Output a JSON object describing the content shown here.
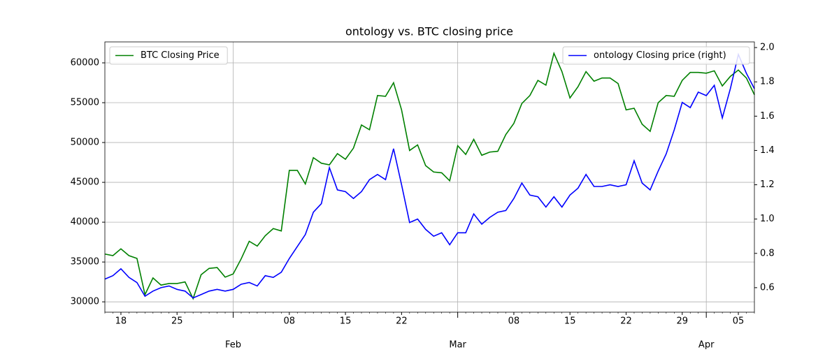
{
  "chart_data": {
    "type": "line",
    "title": "ontology vs. BTC closing price",
    "x": [
      "01-16",
      "01-17",
      "01-18",
      "01-19",
      "01-20",
      "01-21",
      "01-22",
      "01-23",
      "01-24",
      "01-25",
      "01-26",
      "01-27",
      "01-28",
      "01-29",
      "01-30",
      "01-31",
      "02-01",
      "02-02",
      "02-03",
      "02-04",
      "02-05",
      "02-06",
      "02-07",
      "02-08",
      "02-09",
      "02-10",
      "02-11",
      "02-12",
      "02-13",
      "02-14",
      "02-15",
      "02-16",
      "02-17",
      "02-18",
      "02-19",
      "02-20",
      "02-21",
      "02-22",
      "02-23",
      "02-24",
      "02-25",
      "02-26",
      "02-27",
      "02-28",
      "03-01",
      "03-02",
      "03-03",
      "03-04",
      "03-05",
      "03-06",
      "03-07",
      "03-08",
      "03-09",
      "03-10",
      "03-11",
      "03-12",
      "03-13",
      "03-14",
      "03-15",
      "03-16",
      "03-17",
      "03-18",
      "03-19",
      "03-20",
      "03-21",
      "03-22",
      "03-23",
      "03-24",
      "03-25",
      "03-26",
      "03-27",
      "03-28",
      "03-29",
      "03-30",
      "03-31",
      "04-01",
      "04-02",
      "04-03",
      "04-04",
      "04-05",
      "04-06",
      "04-07"
    ],
    "series": [
      {
        "name": "BTC Closing Price",
        "color": "green",
        "axis": "y",
        "values": [
          36000,
          35800,
          36650,
          35800,
          35450,
          30900,
          33000,
          32100,
          32300,
          32300,
          32500,
          30400,
          33400,
          34200,
          34300,
          33100,
          33500,
          35400,
          37600,
          37000,
          38300,
          39200,
          38900,
          46500,
          46500,
          44800,
          48100,
          47400,
          47200,
          48600,
          47900,
          49300,
          52200,
          51600,
          55900,
          55800,
          57500,
          54100,
          49000,
          49700,
          47100,
          46300,
          46200,
          45200,
          49600,
          48500,
          50400,
          48400,
          48800,
          48900,
          51000,
          52400,
          54900,
          55900,
          57800,
          57200,
          61200,
          58900,
          55600,
          57000,
          58900,
          57700,
          58100,
          58100,
          57400,
          54100,
          54300,
          52300,
          51400,
          55000,
          55900,
          55800,
          57800,
          58800,
          58800,
          58700,
          59000,
          57100,
          58300,
          59100,
          58100,
          56000
        ]
      },
      {
        "name": "ontology Closing price (right)",
        "color": "blue",
        "axis": "y2",
        "values": [
          0.65,
          0.67,
          0.71,
          0.66,
          0.63,
          0.55,
          0.58,
          0.6,
          0.61,
          0.59,
          0.58,
          0.54,
          0.56,
          0.58,
          0.59,
          0.58,
          0.59,
          0.62,
          0.63,
          0.61,
          0.67,
          0.66,
          0.69,
          0.77,
          0.84,
          0.91,
          1.04,
          1.09,
          1.3,
          1.17,
          1.16,
          1.12,
          1.16,
          1.23,
          1.26,
          1.23,
          1.41,
          1.2,
          0.98,
          1.0,
          0.94,
          0.9,
          0.92,
          0.85,
          0.92,
          0.92,
          1.03,
          0.97,
          1.01,
          1.04,
          1.05,
          1.12,
          1.21,
          1.14,
          1.13,
          1.07,
          1.13,
          1.07,
          1.14,
          1.18,
          1.26,
          1.19,
          1.19,
          1.2,
          1.19,
          1.2,
          1.34,
          1.21,
          1.17,
          1.28,
          1.38,
          1.52,
          1.68,
          1.65,
          1.74,
          1.72,
          1.78,
          1.59,
          1.76,
          1.96,
          1.85,
          1.76
        ]
      }
    ],
    "ylim": [
      28700,
      62630
    ],
    "yticks": [
      30000,
      35000,
      40000,
      45000,
      50000,
      55000,
      60000
    ],
    "y2lim": [
      0.457,
      2.033
    ],
    "y2ticks": [
      0.6,
      0.8,
      {
        "value": 1.0,
        "label": "1.0"
      },
      1.2,
      1.4,
      1.6,
      1.8,
      {
        "value": 2.0,
        "label": "2.0"
      }
    ],
    "xticks": [
      {
        "value": "01-18",
        "label": "18"
      },
      {
        "value": "01-25",
        "label": "25"
      },
      {
        "value": "02-08",
        "label": "08"
      },
      {
        "value": "02-15",
        "label": "15"
      },
      {
        "value": "02-22",
        "label": "22"
      },
      {
        "value": "03-08",
        "label": "08"
      },
      {
        "value": "03-15",
        "label": "15"
      },
      {
        "value": "03-22",
        "label": "22"
      },
      {
        "value": "03-29",
        "label": "29"
      },
      {
        "value": "04-05",
        "label": "05"
      }
    ],
    "xticks_major": [
      {
        "value": "02-01",
        "label": "Feb"
      },
      {
        "value": "03-01",
        "label": "Mar"
      },
      {
        "value": "04-01",
        "label": "Apr"
      }
    ],
    "grid": true,
    "legend": [
      "upper left",
      "upper right"
    ]
  }
}
